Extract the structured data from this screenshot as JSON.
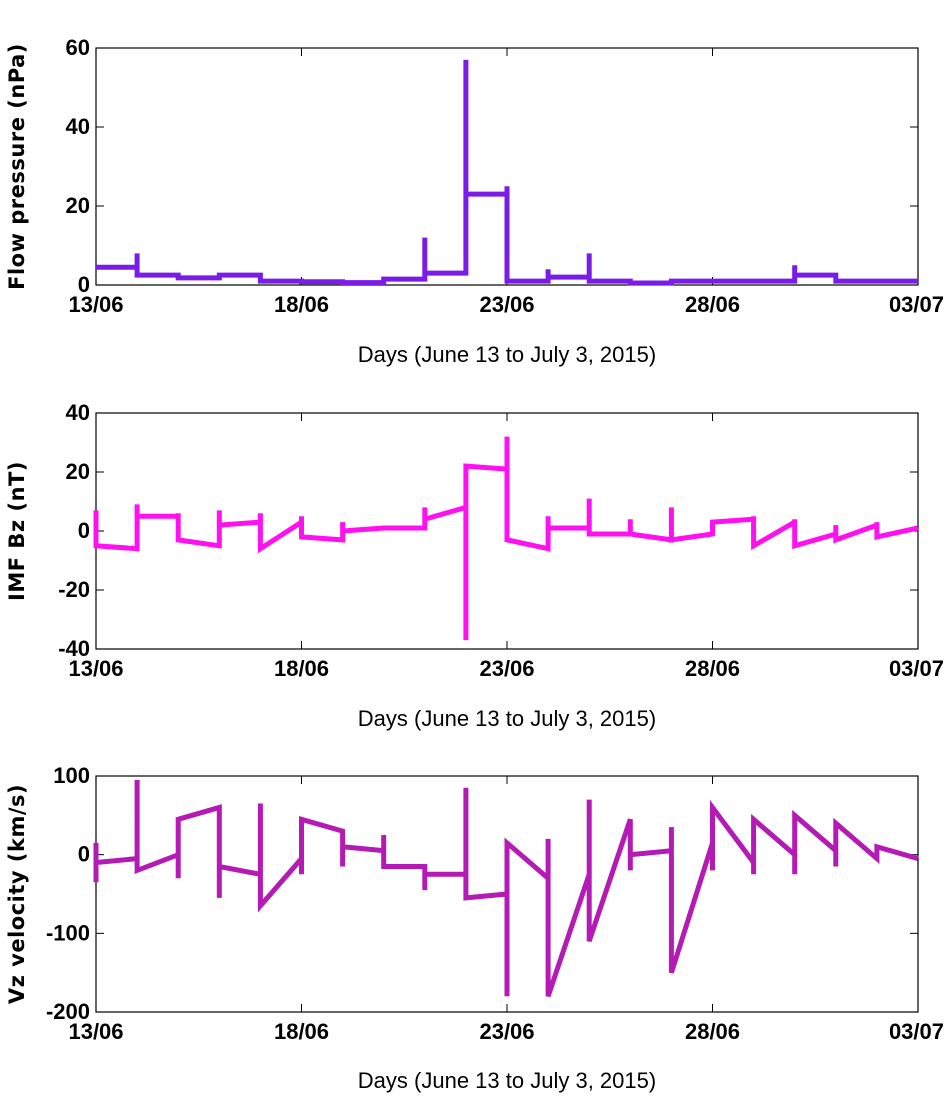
{
  "chart_data": [
    {
      "type": "line",
      "ylabel": "Flow pressure (nPa)",
      "xlabel": "Days (June 13 to July 3, 2015)",
      "xlim": [
        "13/06",
        "03/07"
      ],
      "xticks": [
        "13/06",
        "18/06",
        "23/06",
        "28/06",
        "03/07"
      ],
      "ylim": [
        0,
        60
      ],
      "yticks": [
        0,
        20,
        40,
        60
      ],
      "grid": false,
      "color": "#7a1be6",
      "series": [
        {
          "x": [
            "13/06 00:00",
            "14/06 00:00",
            "14/06 00:00",
            "14/06 00:00",
            "15/06 00:00",
            "15/06 00:00",
            "16/06 00:00",
            "16/06 00:00",
            "17/06 00:00",
            "17/06 00:00",
            "18/06 00:00",
            "18/06 00:00",
            "19/06 00:00",
            "19/06 00:00",
            "20/06 00:00",
            "20/06 00:00",
            "21/06 00:00",
            "21/06 00:00",
            "21/06 00:00",
            "22/06 00:00",
            "22/06 00:00",
            "22/06 00:00",
            "23/06 00:00",
            "23/06 00:00",
            "23/06 00:00",
            "24/06 00:00",
            "24/06 00:00",
            "24/06 00:00",
            "25/06 00:00",
            "25/06 00:00",
            "25/06 00:00",
            "26/06 00:00",
            "26/06 00:00",
            "27/06 00:00",
            "27/06 00:00",
            "28/06 00:00",
            "28/06 00:00",
            "29/06 00:00",
            "29/06 00:00",
            "30/06 00:00",
            "30/06 00:00",
            "30/06 00:00",
            "01/07 00:00",
            "01/07 00:00",
            "02/07 00:00",
            "02/07 00:00",
            "03/07 00:00"
          ],
          "values": [
            4.5,
            4.5,
            8,
            2.5,
            2.5,
            1.8,
            1.8,
            2.5,
            2.5,
            1,
            1,
            0.8,
            0.8,
            0.6,
            0.6,
            1.5,
            1.5,
            12,
            3,
            3,
            57,
            23,
            23,
            25,
            1,
            1,
            4,
            2,
            2,
            8,
            1,
            1,
            0.5,
            0.5,
            1,
            1,
            1,
            1,
            1,
            1,
            5,
            2.5,
            2.5,
            1,
            1,
            1,
            1
          ]
        }
      ]
    },
    {
      "type": "line",
      "ylabel": "IMF Bz (nT)",
      "xlabel": "Days (June 13 to July 3, 2015)",
      "xlim": [
        "13/06",
        "03/07"
      ],
      "xticks": [
        "13/06",
        "18/06",
        "23/06",
        "28/06",
        "03/07"
      ],
      "ylim": [
        -40,
        40
      ],
      "yticks": [
        -40,
        -20,
        0,
        20,
        40
      ],
      "grid": false,
      "color": "#ff10f0",
      "series": [
        {
          "x": [
            "13/06 00:00",
            "13/06 00:00",
            "13/06 00:00",
            "14/06 00:00",
            "14/06 00:00",
            "14/06 00:00",
            "15/06 00:00",
            "15/06 00:00",
            "15/06 00:00",
            "16/06 00:00",
            "16/06 00:00",
            "16/06 00:00",
            "17/06 00:00",
            "17/06 00:00",
            "17/06 00:00",
            "18/06 00:00",
            "18/06 00:00",
            "18/06 00:00",
            "19/06 00:00",
            "19/06 00:00",
            "19/06 00:00",
            "20/06 00:00",
            "20/06 00:00",
            "21/06 00:00",
            "21/06 00:00",
            "21/06 00:00",
            "22/06 00:00",
            "22/06 00:00",
            "22/06 00:00",
            "23/06 00:00",
            "23/06 00:00",
            "23/06 00:00",
            "24/06 00:00",
            "24/06 00:00",
            "24/06 00:00",
            "25/06 00:00",
            "25/06 00:00",
            "25/06 00:00",
            "26/06 00:00",
            "26/06 00:00",
            "26/06 00:00",
            "27/06 00:00",
            "27/06 00:00",
            "27/06 00:00",
            "28/06 00:00",
            "28/06 00:00",
            "29/06 00:00",
            "29/06 00:00",
            "29/06 00:00",
            "30/06 00:00",
            "30/06 00:00",
            "30/06 00:00",
            "01/07 00:00",
            "01/07 00:00",
            "01/07 00:00",
            "02/07 00:00",
            "02/07 00:00",
            "02/07 00:00",
            "03/07 00:00"
          ],
          "values": [
            7,
            -5,
            -5,
            -6,
            9,
            5,
            5,
            6,
            -3,
            -5,
            7,
            2,
            3,
            6,
            -6,
            3,
            5,
            -2,
            -3,
            3,
            0,
            1,
            1,
            1,
            8,
            4,
            8,
            -37,
            22,
            21,
            32,
            -3,
            -6,
            5,
            1,
            1,
            11,
            -1,
            -1,
            4,
            -1,
            -3,
            8,
            -3,
            -1,
            3,
            4,
            5,
            -5,
            3,
            4,
            -5,
            -1,
            2,
            -3,
            2,
            3,
            -2,
            1
          ]
        }
      ]
    },
    {
      "type": "line",
      "ylabel": "Vz velocity (km/s)",
      "xlabel": "Days (June 13 to July 3, 2015)",
      "xlim": [
        "13/06",
        "03/07"
      ],
      "xticks": [
        "13/06",
        "18/06",
        "23/06",
        "28/06",
        "03/07"
      ],
      "ylim": [
        -200,
        100
      ],
      "yticks": [
        -200,
        -100,
        0,
        100
      ],
      "grid": false,
      "color": "#b41ab4",
      "series": [
        {
          "x": [
            "13/06 00:00",
            "13/06 00:00",
            "13/06 00:00",
            "14/06 00:00",
            "14/06 00:00",
            "14/06 00:00",
            "15/06 00:00",
            "15/06 00:00",
            "15/06 00:00",
            "16/06 00:00",
            "16/06 00:00",
            "16/06 00:00",
            "17/06 00:00",
            "17/06 00:00",
            "17/06 00:00",
            "18/06 00:00",
            "18/06 00:00",
            "18/06 00:00",
            "19/06 00:00",
            "19/06 00:00",
            "19/06 00:00",
            "20/06 00:00",
            "20/06 00:00",
            "20/06 00:00",
            "21/06 00:00",
            "21/06 00:00",
            "21/06 00:00",
            "22/06 00:00",
            "22/06 00:00",
            "22/06 00:00",
            "23/06 00:00",
            "23/06 00:00",
            "23/06 00:00",
            "24/06 00:00",
            "24/06 00:00",
            "24/06 00:00",
            "25/06 00:00",
            "25/06 00:00",
            "25/06 00:00",
            "26/06 00:00",
            "26/06 00:00",
            "26/06 00:00",
            "27/06 00:00",
            "27/06 00:00",
            "27/06 00:00",
            "28/06 00:00",
            "28/06 00:00",
            "28/06 00:00",
            "29/06 00:00",
            "29/06 00:00",
            "29/06 00:00",
            "30/06 00:00",
            "30/06 00:00",
            "30/06 00:00",
            "01/07 00:00",
            "01/07 00:00",
            "01/07 00:00",
            "02/07 00:00",
            "02/07 00:00",
            "02/07 00:00",
            "03/07 00:00"
          ],
          "values": [
            15,
            -35,
            -10,
            -5,
            95,
            -20,
            0,
            -30,
            45,
            60,
            -55,
            -15,
            -25,
            65,
            -65,
            -5,
            -25,
            45,
            30,
            -15,
            10,
            5,
            25,
            -15,
            -15,
            -45,
            -25,
            -25,
            85,
            -55,
            -50,
            -180,
            15,
            -30,
            20,
            -180,
            -25,
            70,
            -110,
            45,
            -20,
            0,
            5,
            35,
            -150,
            15,
            -20,
            60,
            -10,
            -25,
            45,
            0,
            -25,
            50,
            5,
            -15,
            40,
            -5,
            -5,
            10,
            -5
          ]
        }
      ]
    }
  ]
}
